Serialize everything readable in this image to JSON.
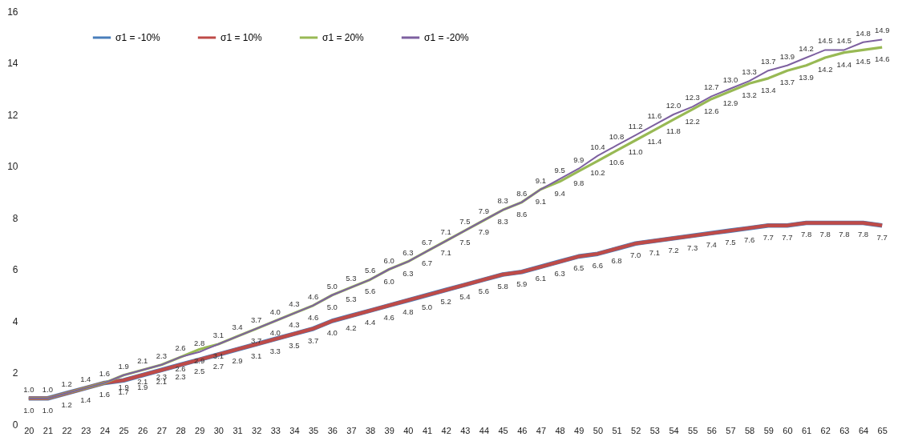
{
  "chart_data": {
    "type": "line",
    "categories": [
      "20",
      "21",
      "22",
      "23",
      "24",
      "25",
      "26",
      "27",
      "28",
      "29",
      "30",
      "31",
      "32",
      "33",
      "34",
      "35",
      "36",
      "37",
      "38",
      "39",
      "40",
      "41",
      "42",
      "43",
      "44",
      "45",
      "46",
      "47",
      "48",
      "49",
      "50",
      "51",
      "52",
      "53",
      "54",
      "55",
      "56",
      "57",
      "58",
      "59",
      "60",
      "61",
      "62",
      "63",
      "64",
      "65"
    ],
    "series": [
      {
        "name": "σ1 = -10%",
        "color": "#4a7ebb",
        "values": [
          1.0,
          1.0,
          1.2,
          1.4,
          1.6,
          1.7,
          1.9,
          2.1,
          2.3,
          2.5,
          2.7,
          2.9,
          3.1,
          3.3,
          3.5,
          3.7,
          4.0,
          4.2,
          4.4,
          4.6,
          4.8,
          5.0,
          5.2,
          5.4,
          5.6,
          5.8,
          5.9,
          6.1,
          6.3,
          6.5,
          6.6,
          6.8,
          7.0,
          7.1,
          7.2,
          7.3,
          7.4,
          7.5,
          7.6,
          7.7,
          7.7,
          7.8,
          7.8,
          7.8,
          7.8,
          7.7
        ]
      },
      {
        "name": "σ1 = 10%",
        "color": "#be4b48",
        "values": [
          1.0,
          1.0,
          1.2,
          1.4,
          1.6,
          1.7,
          1.9,
          2.1,
          2.3,
          2.5,
          2.7,
          2.9,
          3.1,
          3.3,
          3.5,
          3.7,
          4.0,
          4.2,
          4.4,
          4.6,
          4.8,
          5.0,
          5.2,
          5.4,
          5.6,
          5.8,
          5.9,
          6.1,
          6.3,
          6.5,
          6.6,
          6.8,
          7.0,
          7.1,
          7.2,
          7.3,
          7.4,
          7.5,
          7.6,
          7.7,
          7.7,
          7.8,
          7.8,
          7.8,
          7.8,
          7.7
        ],
        "value_labels": [
          "1.0",
          "1.0",
          "1.2",
          "1.4",
          "1.6",
          "1.7",
          "1.9",
          "2.1",
          "2.3",
          "2.5",
          "2.7",
          "2.9",
          "3.1",
          "3.3",
          "3.5",
          "3.7",
          "4.0",
          "4.2",
          "4.4",
          "4.6",
          "4.8",
          "5.0",
          "5.2",
          "5.4",
          "5.6",
          "5.8",
          "5.9",
          "6.1",
          "6.3",
          "6.5",
          "6.6",
          "6.8",
          "7.0",
          "7.1",
          "7.2",
          "7.3",
          "7.4",
          "7.5",
          "7.6",
          "7.7",
          "7.7",
          "7.8",
          "7.8",
          "7.8",
          "7.8",
          "7.7"
        ]
      },
      {
        "name": "σ1 = 20%",
        "color": "#98b954",
        "values": [
          1.0,
          1.0,
          1.2,
          1.4,
          1.6,
          1.9,
          2.1,
          2.3,
          2.6,
          2.9,
          3.1,
          3.4,
          3.7,
          4.0,
          4.3,
          4.6,
          5.0,
          5.3,
          5.6,
          6.0,
          6.3,
          6.7,
          7.1,
          7.5,
          7.9,
          8.3,
          8.6,
          9.1,
          9.4,
          9.8,
          10.2,
          10.6,
          11.0,
          11.4,
          11.8,
          12.2,
          12.6,
          12.9,
          13.2,
          13.4,
          13.7,
          13.9,
          14.2,
          14.4,
          14.5,
          14.6
        ],
        "value_labels": [
          null,
          null,
          null,
          null,
          null,
          "1.9",
          "2.1",
          "2.3",
          "2.6",
          "2.9",
          "3.1",
          null,
          "3.7",
          "4.0",
          "4.3",
          "4.6",
          "5.0",
          "5.3",
          "5.6",
          "6.0",
          "6.3",
          "6.7",
          "7.1",
          "7.5",
          "7.9",
          "8.3",
          "8.6",
          "9.1",
          "9.4",
          "9.8",
          "10.2",
          "10.6",
          "11.0",
          "11.4",
          "11.8",
          "12.2",
          "12.6",
          "12.9",
          "13.2",
          "13.4",
          "13.7",
          "13.9",
          "14.2",
          "14.4",
          "14.5",
          "14.6"
        ]
      },
      {
        "name": "σ1 = -20%",
        "color": "#7d60a0",
        "values": [
          1.0,
          1.0,
          1.2,
          1.4,
          1.6,
          1.9,
          2.1,
          2.3,
          2.6,
          2.8,
          3.1,
          3.4,
          3.7,
          4.0,
          4.3,
          4.6,
          5.0,
          5.3,
          5.6,
          6.0,
          6.3,
          6.7,
          7.1,
          7.5,
          7.9,
          8.3,
          8.6,
          9.1,
          9.5,
          9.9,
          10.4,
          10.8,
          11.2,
          11.6,
          12.0,
          12.3,
          12.7,
          13.0,
          13.3,
          13.7,
          13.9,
          14.2,
          14.5,
          14.5,
          14.8,
          14.9
        ],
        "value_labels": [
          "1.0",
          "1.0",
          "1.2",
          "1.4",
          "1.6",
          "1.9",
          "2.1",
          "2.3",
          "2.6",
          "2.8",
          "3.1",
          "3.4",
          "3.7",
          "4.0",
          "4.3",
          "4.6",
          "5.0",
          "5.3",
          "5.6",
          "6.0",
          "6.3",
          "6.7",
          "7.1",
          "7.5",
          "7.9",
          "8.3",
          "8.6",
          "9.1",
          "9.5",
          "9.9",
          "10.4",
          "10.8",
          "11.2",
          "11.6",
          "12.0",
          "12.3",
          "12.7",
          "13.0",
          "13.3",
          "13.7",
          "13.9",
          "14.2",
          "14.5",
          "14.5",
          "14.8",
          "14.9"
        ]
      }
    ],
    "ylim": [
      0,
      16
    ],
    "yticks": [
      0,
      2,
      4,
      6,
      8,
      10,
      12,
      14,
      16
    ],
    "grid": false,
    "legend": "top left",
    "line_style": "solid"
  }
}
